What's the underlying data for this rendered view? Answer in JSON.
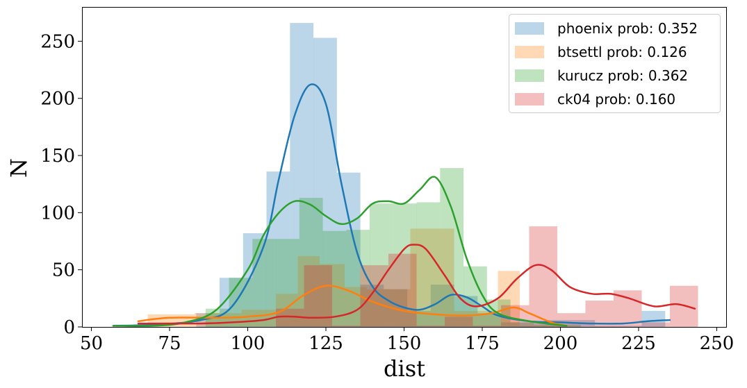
{
  "chart_data": {
    "type": "histogram",
    "xlabel": "dist",
    "ylabel": "N",
    "xlim": [
      47,
      253
    ],
    "ylim": [
      0,
      280
    ],
    "xticks": [
      50,
      75,
      100,
      125,
      150,
      175,
      200,
      225,
      250
    ],
    "yticks": [
      0,
      50,
      100,
      150,
      200,
      250
    ],
    "grid": false,
    "legend_position": "top-right",
    "series": [
      {
        "name": "phoenix prob: 0.352",
        "color": "#1f77b4",
        "bins": [
          [
            83.5,
            91,
            12
          ],
          [
            91,
            98.5,
            43
          ],
          [
            98.5,
            106,
            82
          ],
          [
            106,
            113.5,
            136
          ],
          [
            113.5,
            121,
            266
          ],
          [
            121,
            128.5,
            253
          ],
          [
            128.5,
            136,
            135
          ],
          [
            136,
            143.5,
            37
          ],
          [
            143.5,
            151,
            33
          ],
          [
            151,
            158.5,
            14
          ],
          [
            158.5,
            166,
            37
          ],
          [
            166,
            173.5,
            27
          ],
          [
            173.5,
            181,
            12
          ],
          [
            181,
            188.5,
            4
          ],
          [
            188.5,
            196,
            4
          ],
          [
            196,
            203.5,
            6
          ],
          [
            203.5,
            211,
            6
          ],
          [
            211,
            218.5,
            1
          ],
          [
            218.5,
            226,
            1
          ],
          [
            226,
            233.5,
            14
          ]
        ],
        "kde": [
          [
            57,
            1
          ],
          [
            70,
            2
          ],
          [
            85,
            6
          ],
          [
            95,
            18
          ],
          [
            105,
            70
          ],
          [
            110,
            130
          ],
          [
            115,
            185
          ],
          [
            120,
            212
          ],
          [
            125,
            195
          ],
          [
            130,
            125
          ],
          [
            135,
            65
          ],
          [
            140,
            35
          ],
          [
            145,
            23
          ],
          [
            150,
            17
          ],
          [
            155,
            15
          ],
          [
            160,
            20
          ],
          [
            165,
            28
          ],
          [
            170,
            26
          ],
          [
            175,
            18
          ],
          [
            180,
            10
          ],
          [
            190,
            5
          ],
          [
            200,
            4
          ],
          [
            210,
            3
          ],
          [
            220,
            3
          ],
          [
            228,
            5
          ],
          [
            235,
            6
          ]
        ]
      },
      {
        "name": "btsettl prob: 0.126",
        "color": "#ff7f0e",
        "bins": [
          [
            68,
            83,
            11
          ],
          [
            83,
            98,
            12
          ],
          [
            98,
            109,
            15
          ],
          [
            109,
            116,
            29
          ],
          [
            116,
            123,
            62
          ],
          [
            123,
            131,
            55
          ],
          [
            131,
            138,
            35
          ],
          [
            138,
            152,
            33
          ],
          [
            152,
            166,
            86
          ],
          [
            166,
            180,
            14
          ],
          [
            180,
            187,
            49
          ],
          [
            187,
            201,
            1
          ]
        ],
        "kde": [
          [
            65,
            5
          ],
          [
            75,
            8
          ],
          [
            90,
            8
          ],
          [
            100,
            9
          ],
          [
            110,
            13
          ],
          [
            118,
            28
          ],
          [
            125,
            36
          ],
          [
            132,
            32
          ],
          [
            140,
            22
          ],
          [
            150,
            14
          ],
          [
            160,
            11
          ],
          [
            170,
            10
          ],
          [
            178,
            12
          ],
          [
            185,
            17
          ],
          [
            190,
            12
          ],
          [
            197,
            4
          ],
          [
            202,
            1
          ]
        ]
      },
      {
        "name": "kurucz prob: 0.362",
        "color": "#2ca02c",
        "bins": [
          [
            86.5,
            94,
            16
          ],
          [
            94,
            101.5,
            43
          ],
          [
            101.5,
            109,
            77
          ],
          [
            109,
            116.5,
            77
          ],
          [
            116.5,
            124,
            113
          ],
          [
            124,
            131.5,
            84
          ],
          [
            131.5,
            139,
            85
          ],
          [
            139,
            146.5,
            108
          ],
          [
            146.5,
            154,
            108
          ],
          [
            154,
            161.5,
            109
          ],
          [
            161.5,
            169,
            139
          ],
          [
            169,
            176.5,
            53
          ],
          [
            176.5,
            184,
            24
          ],
          [
            184,
            191.5,
            4
          ],
          [
            191.5,
            199,
            2
          ],
          [
            199,
            206.5,
            2
          ]
        ],
        "kde": [
          [
            57,
            1
          ],
          [
            70,
            1
          ],
          [
            80,
            4
          ],
          [
            90,
            15
          ],
          [
            100,
            50
          ],
          [
            105,
            80
          ],
          [
            110,
            100
          ],
          [
            115,
            110
          ],
          [
            120,
            107
          ],
          [
            125,
            97
          ],
          [
            130,
            90
          ],
          [
            135,
            95
          ],
          [
            140,
            108
          ],
          [
            145,
            110
          ],
          [
            150,
            108
          ],
          [
            155,
            120
          ],
          [
            160,
            131
          ],
          [
            165,
            105
          ],
          [
            170,
            60
          ],
          [
            175,
            28
          ],
          [
            180,
            12
          ],
          [
            190,
            5
          ],
          [
            202,
            1
          ]
        ]
      },
      {
        "name": "ck04 prob: 0.160",
        "color": "#d62728",
        "bins": [
          [
            109,
            118,
            16
          ],
          [
            118,
            127,
            54
          ],
          [
            127,
            136,
            1
          ],
          [
            136,
            145,
            54
          ],
          [
            145,
            154,
            64
          ],
          [
            154,
            163,
            1
          ],
          [
            163,
            172,
            9
          ],
          [
            172,
            181,
            1
          ],
          [
            181,
            190,
            19
          ],
          [
            190,
            199,
            88
          ],
          [
            199,
            208,
            12
          ],
          [
            208,
            217,
            23
          ],
          [
            217,
            226,
            32
          ],
          [
            226,
            235,
            4
          ],
          [
            235,
            244,
            36
          ]
        ],
        "kde": [
          [
            65,
            3
          ],
          [
            75,
            3
          ],
          [
            85,
            3
          ],
          [
            95,
            4
          ],
          [
            105,
            6
          ],
          [
            110,
            9
          ],
          [
            115,
            9
          ],
          [
            120,
            8
          ],
          [
            128,
            9
          ],
          [
            135,
            15
          ],
          [
            140,
            30
          ],
          [
            145,
            50
          ],
          [
            150,
            68
          ],
          [
            153,
            72
          ],
          [
            157,
            68
          ],
          [
            163,
            45
          ],
          [
            168,
            25
          ],
          [
            173,
            18
          ],
          [
            180,
            25
          ],
          [
            186,
            42
          ],
          [
            192,
            54
          ],
          [
            197,
            50
          ],
          [
            203,
            35
          ],
          [
            210,
            29
          ],
          [
            216,
            29
          ],
          [
            222,
            25
          ],
          [
            230,
            18
          ],
          [
            237,
            20
          ],
          [
            243,
            16
          ]
        ]
      }
    ]
  }
}
